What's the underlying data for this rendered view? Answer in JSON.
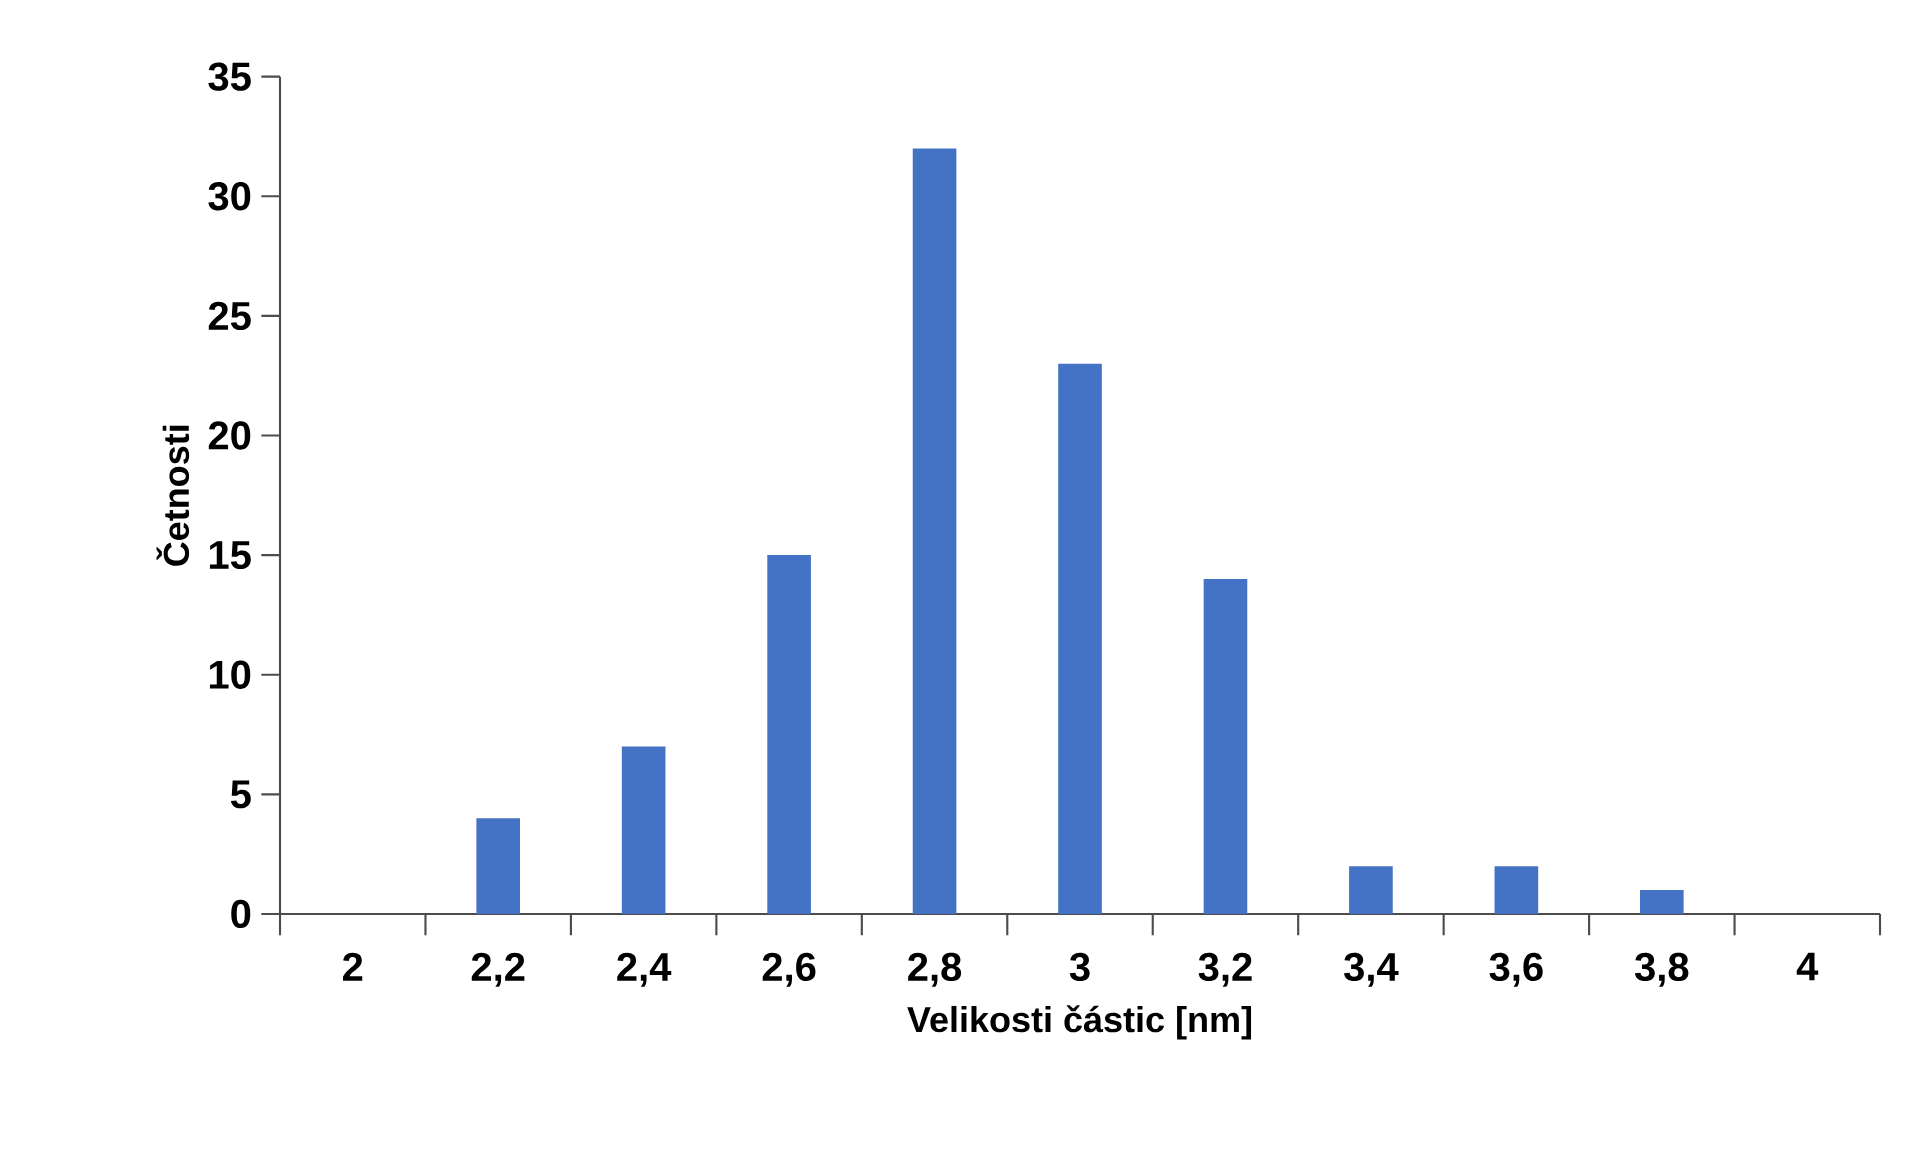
{
  "chart_data": {
    "type": "bar",
    "xlabel": "Velikosti částic [nm]",
    "ylabel": "Četnosti",
    "categories": [
      "2",
      "2,2",
      "2,4",
      "2,6",
      "2,8",
      "3",
      "3,2",
      "3,4",
      "3,6",
      "3,8",
      "4"
    ],
    "values": [
      0,
      4,
      7,
      15,
      32,
      23,
      14,
      2,
      2,
      1,
      0
    ],
    "color": "#4472c4",
    "ylim": [
      0,
      35
    ],
    "yticks": [
      0,
      5,
      10,
      15,
      20,
      25,
      30,
      35
    ]
  }
}
